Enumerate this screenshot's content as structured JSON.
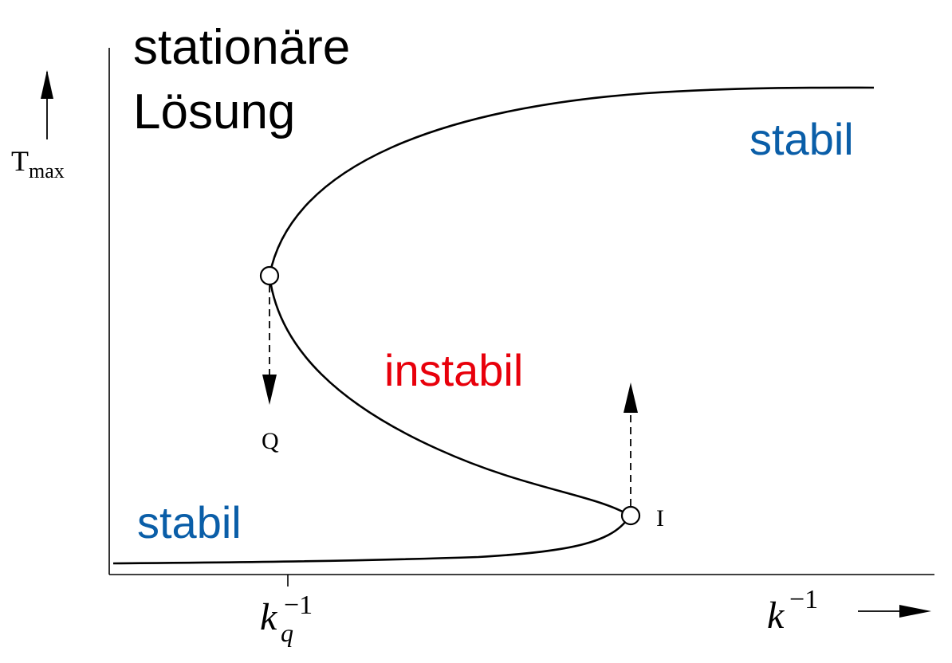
{
  "title": {
    "line1": "stationäre",
    "line2": "Lösung"
  },
  "y_axis": {
    "label_main": "T",
    "label_sub": "max"
  },
  "x_axis": {
    "label_main": "k",
    "label_sup": "−1",
    "tick_main": "k",
    "tick_sub": "q",
    "tick_sup": "−1"
  },
  "branches": {
    "upper": {
      "label": "stabil",
      "color": "#0a5ea8"
    },
    "middle": {
      "label": "instabil",
      "color": "#e8000b"
    },
    "lower": {
      "label": "stabil",
      "color": "#0a5ea8"
    }
  },
  "points": {
    "quench": {
      "label": "Q"
    },
    "ignition": {
      "label": "I"
    }
  },
  "colors": {
    "curve": "#000000",
    "axes": "#000000",
    "text": "#000000"
  }
}
